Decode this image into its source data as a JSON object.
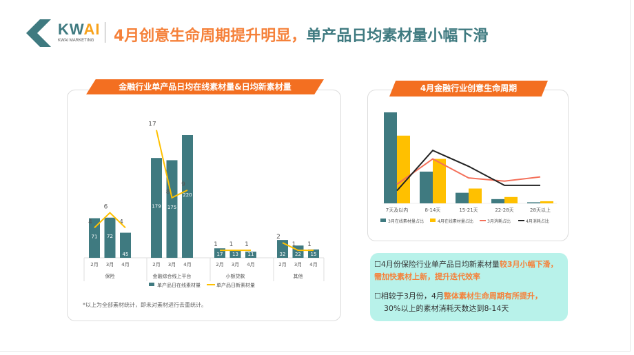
{
  "logo": {
    "word_main": "KW",
    "word_accent": "AI",
    "subtitle": "KWAI MARKETING"
  },
  "title": {
    "part1": "4月创意生命周期提升明显，",
    "part2": "单产品日均素材量小幅下滑"
  },
  "colors": {
    "teal": "#3f7a80",
    "yellow": "#ffc000",
    "orange": "#f36f21",
    "red_line": "#f4705a",
    "black_line": "#222222"
  },
  "left_chart": {
    "banner": "金融行业单产品日均在线素材量&日均新素材量",
    "note": "*以上为全部素材统计，即未对素材进行去重统计。"
  },
  "right_chart": {
    "banner": "4月金融行业创意生命周期"
  },
  "chart_data": [
    {
      "type": "bar+line",
      "groups": [
        {
          "name": "保险",
          "months": [
            "2月",
            "3月",
            "4月"
          ],
          "online": [
            71,
            72,
            45
          ],
          "new": [
            4,
            6,
            4
          ]
        },
        {
          "name": "金融综合线上平台",
          "months": [
            "2月",
            "3月",
            "4月"
          ],
          "online": [
            179,
            175,
            220
          ],
          "new": [
            17,
            8,
            9
          ]
        },
        {
          "name": "小额贷款",
          "months": [
            "2月",
            "3月",
            "4月"
          ],
          "online": [
            17,
            13,
            11
          ],
          "new": [
            1,
            1,
            1
          ]
        },
        {
          "name": "其他",
          "months": [
            "2月",
            "3月",
            "4月"
          ],
          "online": [
            32,
            22,
            15
          ],
          "new": [
            2,
            1,
            1
          ]
        }
      ],
      "series": [
        {
          "name": "单产品日在线素材量",
          "type": "bar"
        },
        {
          "name": "单产品日新素材量",
          "type": "line"
        }
      ],
      "legend": "bottom"
    },
    {
      "type": "bar+line",
      "categories": [
        "7天及以内",
        "8-14天",
        "15-21天",
        "22-28天",
        "28天以上"
      ],
      "series": [
        {
          "name": "3月在线素材量占比",
          "type": "bar",
          "values": [
            43,
            15,
            5,
            2,
            0.5
          ]
        },
        {
          "name": "4月在线素材量占比",
          "type": "bar",
          "values": [
            32,
            21,
            7,
            3,
            1
          ]
        },
        {
          "name": "3月消耗占比",
          "type": "line",
          "values": [
            9,
            21,
            12,
            10.5,
            12.5
          ]
        },
        {
          "name": "4月消耗占比",
          "type": "line",
          "values": [
            6,
            25,
            17.5,
            8.5,
            8.5
          ]
        }
      ],
      "legend": "bottom"
    }
  ],
  "info": {
    "p1_normal": "4月份保险行业单产品日均新素材量",
    "p1_highlight": "较3月小幅下滑，需加快素材上新，提升迭代效率",
    "p2_normal": "相较于3月份，4月",
    "p2_highlight": "整体素材生命周期有所提升，",
    "p2_tail": "30%以上的素材消耗天数达到8-14天"
  }
}
